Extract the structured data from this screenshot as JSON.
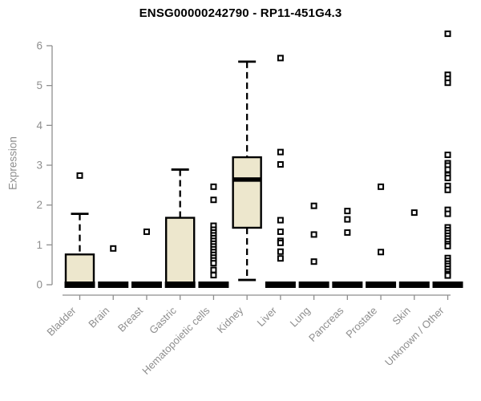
{
  "chart_data": {
    "type": "boxplot",
    "title": "ENSG00000242790 - RP11-451G4.3",
    "xlabel": "",
    "ylabel": "Expression",
    "ylim": [
      0,
      6
    ],
    "yticks": [
      0,
      1,
      2,
      3,
      4,
      5,
      6
    ],
    "grid": false,
    "legend": "none",
    "categories": [
      "Bladder",
      "Brain",
      "Breast",
      "Gastric",
      "Hematopoietic cells",
      "Kidney",
      "Liver",
      "Lung",
      "Pancreas",
      "Prostate",
      "Skin",
      "Unknown / Other"
    ],
    "boxes": [
      {
        "category": "Bladder",
        "low": 0,
        "q1": 0,
        "median": 0,
        "q3": 0.76,
        "high": 1.78,
        "outliers": [
          2.74
        ]
      },
      {
        "category": "Brain",
        "low": 0,
        "q1": 0,
        "median": 0,
        "q3": 0,
        "high": 0,
        "outliers": [
          0.91
        ]
      },
      {
        "category": "Breast",
        "low": 0,
        "q1": 0,
        "median": 0,
        "q3": 0,
        "high": 0,
        "outliers": [
          1.33
        ]
      },
      {
        "category": "Gastric",
        "low": 0,
        "q1": 0,
        "median": 0,
        "q3": 1.68,
        "high": 2.89,
        "outliers": []
      },
      {
        "category": "Hematopoietic cells",
        "low": 0,
        "q1": 0,
        "median": 0,
        "q3": 0,
        "high": 0,
        "outliers": [
          2.46,
          2.13,
          1.48,
          1.38,
          1.31,
          1.24,
          1.17,
          1.1,
          1.03,
          0.96,
          0.89,
          0.82,
          0.75,
          0.68,
          0.61,
          0.54,
          0.37,
          0.24
        ]
      },
      {
        "category": "Kidney",
        "low": 0.12,
        "q1": 1.43,
        "median": 2.64,
        "q3": 3.2,
        "high": 5.6,
        "outliers": []
      },
      {
        "category": "Liver",
        "low": 0,
        "q1": 0,
        "median": 0,
        "q3": 0,
        "high": 0,
        "outliers": [
          5.69,
          3.33,
          3.02,
          1.62,
          1.33,
          1.1,
          1.05,
          0.83,
          0.66
        ]
      },
      {
        "category": "Lung",
        "low": 0,
        "q1": 0,
        "median": 0,
        "q3": 0,
        "high": 0,
        "outliers": [
          1.98,
          1.26,
          0.58
        ]
      },
      {
        "category": "Pancreas",
        "low": 0,
        "q1": 0,
        "median": 0,
        "q3": 0,
        "high": 0,
        "outliers": [
          1.85,
          1.64,
          1.31
        ]
      },
      {
        "category": "Prostate",
        "low": 0,
        "q1": 0,
        "median": 0,
        "q3": 0,
        "high": 0,
        "outliers": [
          2.46,
          0.82
        ]
      },
      {
        "category": "Skin",
        "low": 0,
        "q1": 0,
        "median": 0,
        "q3": 0,
        "high": 0,
        "outliers": [
          1.81
        ]
      },
      {
        "category": "Unknown / Other",
        "low": 0,
        "q1": 0,
        "median": 0,
        "q3": 0,
        "high": 0,
        "outliers": [
          6.3,
          5.27,
          5.17,
          5.07,
          3.26,
          3.05,
          2.99,
          2.89,
          2.75,
          2.68,
          2.48,
          2.38,
          1.88,
          1.78,
          1.44,
          1.37,
          1.3,
          1.23,
          1.16,
          1.09,
          1.02,
          0.97,
          0.67,
          0.6,
          0.53,
          0.47,
          0.4,
          0.33,
          0.27,
          0.23
        ]
      }
    ],
    "colors": {
      "box_fill": "#EDE7CD",
      "box_border": "#000000",
      "median": "#000000",
      "whisker": "#000000",
      "outlier_stroke": "#000000",
      "outlier_fill": "#ffffff",
      "axis": "#8e8e8e",
      "tick_label": "#8e8e8e",
      "title": "#000000",
      "background": "#ffffff"
    }
  }
}
